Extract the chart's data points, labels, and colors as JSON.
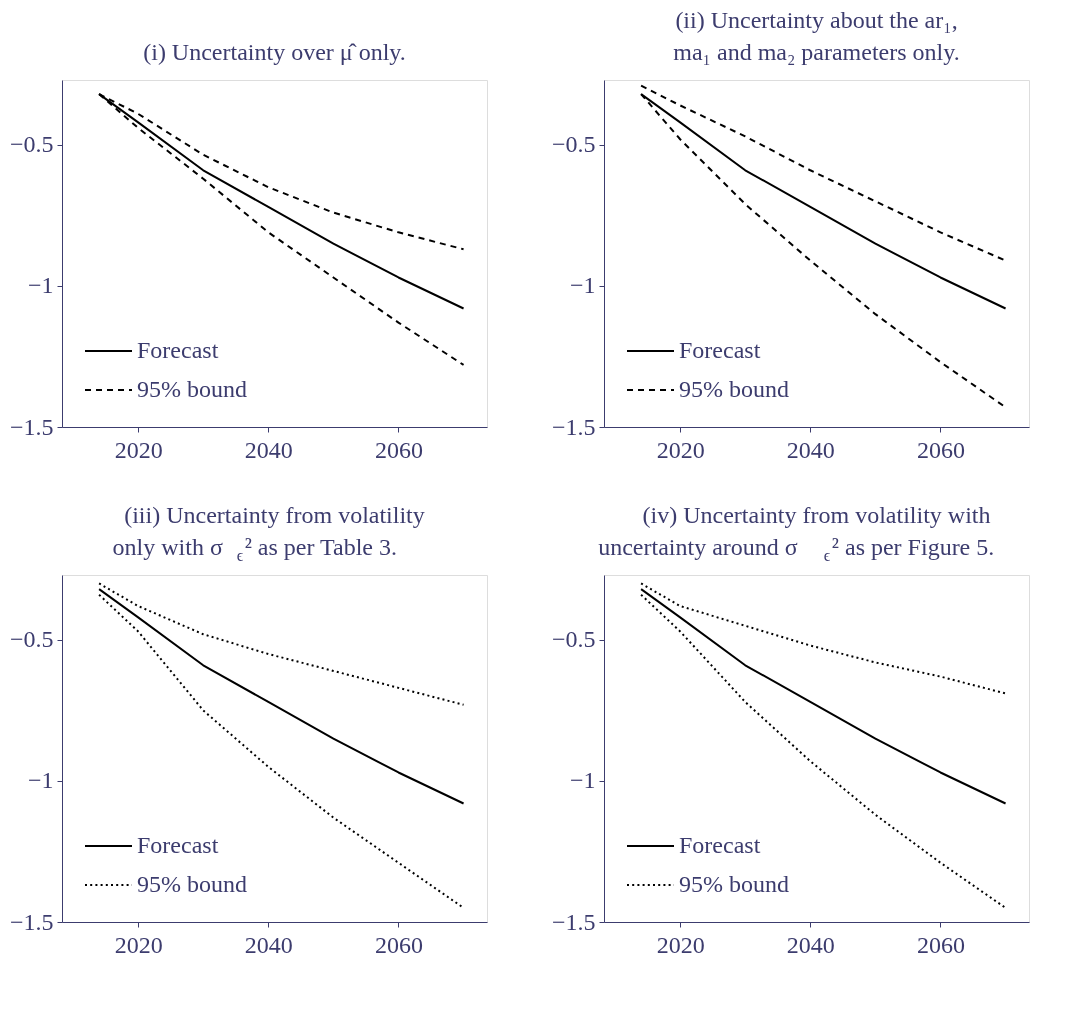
{
  "chart_data": [
    {
      "type": "line",
      "title": "(i) Uncertainty over μ̂ only.",
      "xlim": [
        2008.3,
        2073.6
      ],
      "ylim": [
        -1.5,
        -0.27
      ],
      "xticks": [
        2020,
        2040,
        2060
      ],
      "yticks": [
        {
          "value": -0.5,
          "label": "−0.5"
        },
        {
          "value": -1,
          "label": "−1"
        },
        {
          "value": -1.5,
          "label": "−1.5"
        }
      ],
      "legend": "bottom left",
      "grid": false,
      "x": [
        2014,
        2020,
        2030,
        2040,
        2050,
        2060,
        2070
      ],
      "series": [
        {
          "name": "Forecast",
          "color": "#000000",
          "line_style": "solid",
          "values": [
            -0.32,
            -0.42,
            -0.59,
            -0.72,
            -0.85,
            -0.97,
            -1.08
          ]
        },
        {
          "name": "95% bound",
          "color": "#000000",
          "line_style": "dashed",
          "values": [
            -0.32,
            -0.39,
            -0.535,
            -0.65,
            -0.74,
            -0.81,
            -0.87
          ]
        },
        {
          "color": "#000000",
          "line_style": "dashed",
          "values": [
            -0.32,
            -0.44,
            -0.62,
            -0.81,
            -0.97,
            -1.13,
            -1.28
          ]
        }
      ]
    },
    {
      "type": "line",
      "title": "(ii) Uncertainty about the ar₁,\nma₁ and ma₂ parameters only.",
      "xlim": [
        2008.3,
        2073.6
      ],
      "ylim": [
        -1.5,
        -0.27
      ],
      "xticks": [
        2020,
        2040,
        2060
      ],
      "yticks": [
        {
          "value": -0.5,
          "label": "−0.5"
        },
        {
          "value": -1,
          "label": "−1"
        },
        {
          "value": -1.5,
          "label": "−1.5"
        }
      ],
      "legend": "bottom left",
      "grid": false,
      "x": [
        2014,
        2020,
        2030,
        2040,
        2050,
        2060,
        2070
      ],
      "series": [
        {
          "name": "Forecast",
          "color": "#000000",
          "line_style": "solid",
          "values": [
            -0.32,
            -0.42,
            -0.59,
            -0.72,
            -0.85,
            -0.97,
            -1.08
          ]
        },
        {
          "name": "95% bound",
          "color": "#000000",
          "line_style": "dashed",
          "values": [
            -0.29,
            -0.36,
            -0.47,
            -0.59,
            -0.7,
            -0.81,
            -0.91
          ]
        },
        {
          "color": "#000000",
          "line_style": "dashed",
          "values": [
            -0.32,
            -0.48,
            -0.71,
            -0.91,
            -1.1,
            -1.27,
            -1.43
          ]
        }
      ]
    },
    {
      "type": "line",
      "title": "(iii) Uncertainty from volatility\nonly with σ$_{ϵ}$² as per Table 3.",
      "xlim": [
        2008.3,
        2073.6
      ],
      "ylim": [
        -1.5,
        -0.27
      ],
      "xticks": [
        2020,
        2040,
        2060
      ],
      "yticks": [
        {
          "value": -0.5,
          "label": "−0.5"
        },
        {
          "value": -1,
          "label": "−1"
        },
        {
          "value": -1.5,
          "label": "−1.5"
        }
      ],
      "legend": "bottom left",
      "grid": false,
      "x": [
        2014,
        2020,
        2030,
        2040,
        2050,
        2060,
        2070
      ],
      "series": [
        {
          "name": "Forecast",
          "color": "#000000",
          "line_style": "solid",
          "values": [
            -0.32,
            -0.42,
            -0.59,
            -0.72,
            -0.85,
            -0.97,
            -1.08
          ]
        },
        {
          "name": "95% bound",
          "color": "#000000",
          "line_style": "dotted",
          "values": [
            -0.3,
            -0.38,
            -0.48,
            -0.55,
            -0.61,
            -0.67,
            -0.73
          ]
        },
        {
          "color": "#000000",
          "line_style": "dotted",
          "values": [
            -0.34,
            -0.47,
            -0.75,
            -0.95,
            -1.13,
            -1.29,
            -1.45
          ]
        }
      ]
    },
    {
      "type": "line",
      "title": "(iv) Uncertainty from volatility with\nuncertainty around σ$_{ϵ}$² as per Figure 5.",
      "xlim": [
        2008.3,
        2073.6
      ],
      "ylim": [
        -1.5,
        -0.27
      ],
      "xticks": [
        2020,
        2040,
        2060
      ],
      "yticks": [
        {
          "value": -0.5,
          "label": "−0.5"
        },
        {
          "value": -1,
          "label": "−1"
        },
        {
          "value": -1.5,
          "label": "−1.5"
        }
      ],
      "legend": "bottom left",
      "grid": false,
      "x": [
        2014,
        2020,
        2030,
        2040,
        2050,
        2060,
        2070
      ],
      "series": [
        {
          "name": "Forecast",
          "color": "#000000",
          "line_style": "solid",
          "values": [
            -0.32,
            -0.42,
            -0.59,
            -0.72,
            -0.85,
            -0.97,
            -1.08
          ]
        },
        {
          "name": "95% bound",
          "color": "#000000",
          "line_style": "dotted",
          "values": [
            -0.3,
            -0.38,
            -0.45,
            -0.52,
            -0.58,
            -0.63,
            -0.69
          ]
        },
        {
          "color": "#000000",
          "line_style": "dotted",
          "values": [
            -0.34,
            -0.47,
            -0.72,
            -0.93,
            -1.12,
            -1.29,
            -1.45
          ]
        }
      ]
    }
  ]
}
